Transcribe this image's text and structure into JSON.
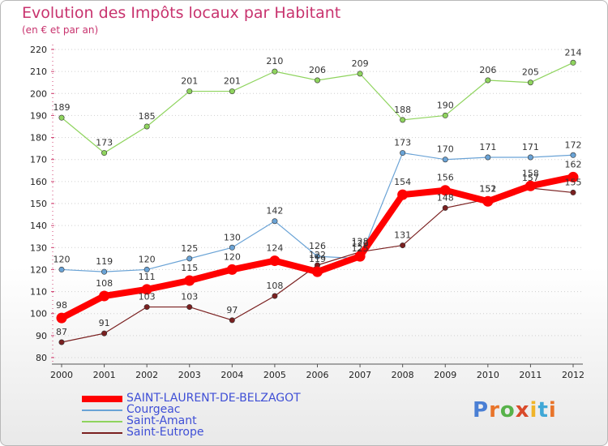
{
  "title": "Evolution des Impôts locaux par Habitant",
  "subtitle": "(en € et par an)",
  "logo": "Proxiti",
  "chart_data": {
    "type": "line",
    "title": "Evolution des Impôts locaux par Habitant",
    "subtitle": "(en € et par an)",
    "xlabel": "",
    "ylabel": "",
    "ylim": [
      80,
      220
    ],
    "yticks": [
      80,
      90,
      100,
      110,
      120,
      130,
      140,
      150,
      160,
      170,
      180,
      190,
      200,
      210,
      220
    ],
    "grid": "horizontal dotted",
    "legend": "bottom-left",
    "x": [
      "2000",
      "2001",
      "2002",
      "2003",
      "2004",
      "2005",
      "2006",
      "2007",
      "2008",
      "2009",
      "2010",
      "2011",
      "2012"
    ],
    "series": [
      {
        "name": "SAINT-LAURENT-DE-BELZAGOT",
        "color": "#ff0000",
        "values": [
          98,
          108,
          111,
          115,
          120,
          124,
          119,
          126,
          154,
          156,
          151,
          158,
          162
        ]
      },
      {
        "name": "Courgeac",
        "color": "#6aa3d6",
        "values": [
          120,
          119,
          120,
          125,
          130,
          142,
          126,
          125,
          173,
          170,
          171,
          171,
          172
        ]
      },
      {
        "name": "Saint-Amant",
        "color": "#8fd45e",
        "values": [
          189,
          173,
          185,
          201,
          201,
          210,
          206,
          209,
          188,
          190,
          206,
          205,
          214
        ]
      },
      {
        "name": "Saint-Eutrope",
        "color": "#7a2020",
        "values": [
          87,
          91,
          103,
          103,
          97,
          108,
          122,
          128,
          131,
          148,
          152,
          157,
          155
        ]
      }
    ]
  }
}
